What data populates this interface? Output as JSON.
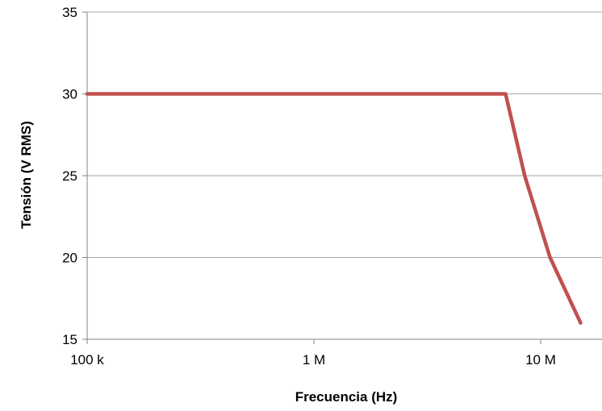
{
  "chart_data": {
    "type": "line",
    "title": "",
    "xlabel": "Frecuencia (Hz)",
    "ylabel": "Tensión (V RMS)",
    "xscale": "log",
    "xlim": [
      100000,
      14000000
    ],
    "ylim": [
      15,
      35
    ],
    "x_ticks": [
      {
        "value": 100000,
        "label": "100 k"
      },
      {
        "value": 1000000,
        "label": "1 M"
      },
      {
        "value": 10000000,
        "label": "10 M"
      }
    ],
    "y_ticks": [
      {
        "value": 15,
        "label": "15"
      },
      {
        "value": 20,
        "label": "20"
      },
      {
        "value": 25,
        "label": "25"
      },
      {
        "value": 30,
        "label": "30"
      },
      {
        "value": 35,
        "label": "35"
      }
    ],
    "grid": "horizontal",
    "legend": "none",
    "series": [
      {
        "color": "#c0504d",
        "points": [
          {
            "x": 100000,
            "y": 30
          },
          {
            "x": 7000000,
            "y": 30
          },
          {
            "x": 8500000,
            "y": 25
          },
          {
            "x": 11000000,
            "y": 20
          },
          {
            "x": 15000000,
            "y": 16
          }
        ]
      }
    ]
  }
}
